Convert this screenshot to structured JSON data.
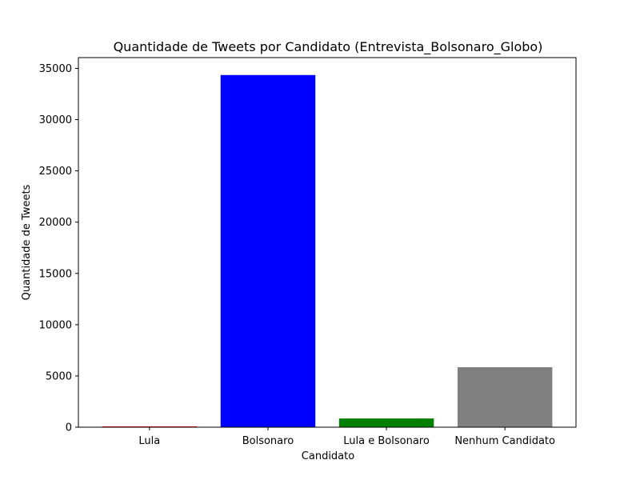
{
  "chart_data": {
    "type": "bar",
    "title": "Quantidade de Tweets por Candidato (Entrevista_Bolsonaro_Globo)",
    "xlabel": "Candidato",
    "ylabel": "Quantidade de Tweets",
    "categories": [
      "Lula",
      "Bolsonaro",
      "Lula e Bolsonaro",
      "Nenhum Candidato"
    ],
    "values": [
      80,
      34350,
      850,
      5850
    ],
    "colors": [
      "#ff0000",
      "#0000ff",
      "#008000",
      "#808080"
    ],
    "ylim": [
      0,
      36050
    ],
    "yticks": [
      0,
      5000,
      10000,
      15000,
      20000,
      25000,
      30000,
      35000
    ],
    "grid": false,
    "legend": "none"
  }
}
